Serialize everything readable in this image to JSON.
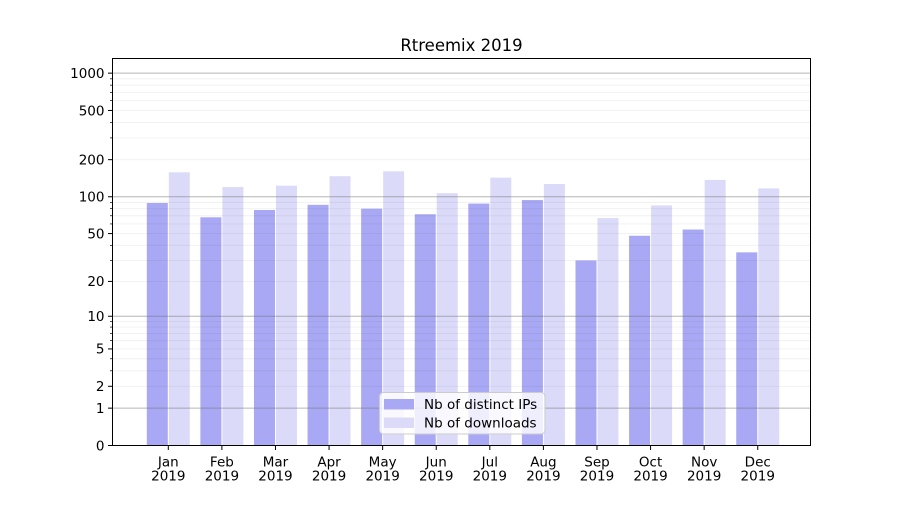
{
  "chart_data": {
    "type": "bar",
    "title": "Rtreemix 2019",
    "y_scale": "log1p",
    "categories": [
      "Jan 2019",
      "Feb 2019",
      "Mar 2019",
      "Apr 2019",
      "May 2019",
      "Jun 2019",
      "Jul 2019",
      "Aug 2019",
      "Sep 2019",
      "Oct 2019",
      "Nov 2019",
      "Dec 2019"
    ],
    "month_labels": [
      "Jan",
      "Feb",
      "Mar",
      "Apr",
      "May",
      "Jun",
      "Jul",
      "Aug",
      "Sep",
      "Oct",
      "Nov",
      "Dec"
    ],
    "year_label": "2019",
    "series": [
      {
        "name": "Nb of distinct IPs",
        "color": "#a8a8f4",
        "values": [
          89,
          68,
          78,
          86,
          80,
          72,
          88,
          94,
          30,
          48,
          54,
          35
        ]
      },
      {
        "name": "Nb of downloads",
        "color": "#dbdbf9",
        "values": [
          158,
          120,
          123,
          147,
          161,
          107,
          143,
          127,
          67,
          85,
          137,
          117
        ]
      }
    ],
    "y_ticks": [
      0,
      1,
      2,
      5,
      10,
      20,
      50,
      100,
      200,
      500,
      1000
    ],
    "y_major_gridlines": [
      1,
      10,
      100,
      1000
    ],
    "ylim": [
      0,
      1340
    ],
    "grid": true,
    "legend": {
      "labels": [
        "Nb of distinct IPs",
        "Nb of downloads"
      ],
      "position": "lower center"
    }
  },
  "style": {
    "bar_distinct_ips_color": "#a8a8f4",
    "bar_downloads_color": "#dbdbf9",
    "grid_major_color": "#b0b0b0",
    "grid_minor_color": "#ebebeb",
    "axis_color": "#000000",
    "legend_border_color": "#cccccc",
    "background": "#ffffff"
  }
}
